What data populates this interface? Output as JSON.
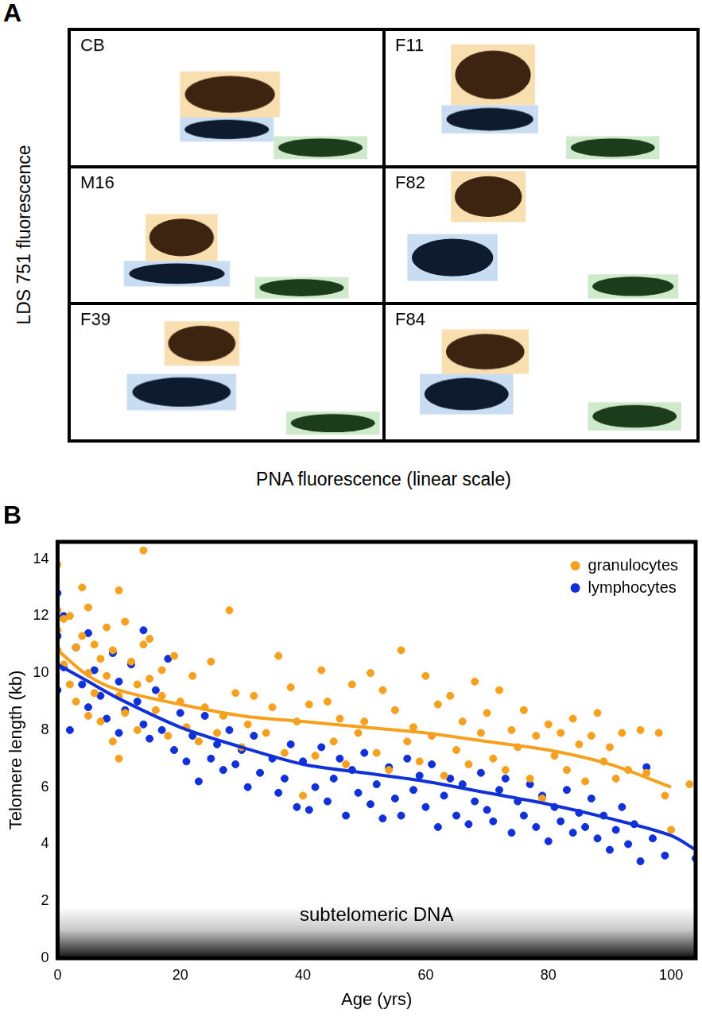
{
  "chart_data": [
    {
      "type": "scatter",
      "label": "A",
      "x_label": "PNA fluorescence (linear scale)",
      "y_label": "LDS 751 fluorescence",
      "tick_labels": false,
      "subplots": [
        {
          "title": "CB",
          "xlim": [
            0,
            100
          ],
          "ylim": [
            0,
            100
          ],
          "gates": [
            {
              "x": [
                35,
                65
              ],
              "y": [
                18,
                36
              ],
              "gate_color": "#c8dcf2",
              "color": "#0e1a2e"
            },
            {
              "x": [
                35,
                67
              ],
              "y": [
                36,
                70
              ],
              "gate_color": "#f9deb0",
              "color": "#3d2410"
            },
            {
              "x": [
                65,
                95
              ],
              "y": [
                5,
                22
              ],
              "gate_color": "#cfeacb",
              "color": "#1b3d1b"
            }
          ]
        },
        {
          "title": "F11",
          "xlim": [
            0,
            100
          ],
          "ylim": [
            0,
            100
          ],
          "gates": [
            {
              "x": [
                18,
                49
              ],
              "y": [
                24,
                45
              ],
              "gate_color": "#c8dcf2",
              "color": "#0e1a2e"
            },
            {
              "x": [
                21,
                48
              ],
              "y": [
                45,
                90
              ],
              "gate_color": "#f9deb0",
              "color": "#3d2410"
            },
            {
              "x": [
                58,
                88
              ],
              "y": [
                5,
                22
              ],
              "gate_color": "#cfeacb",
              "color": "#1b3d1b"
            }
          ]
        },
        {
          "title": "M16",
          "xlim": [
            0,
            100
          ],
          "ylim": [
            0,
            100
          ],
          "gates": [
            {
              "x": [
                17,
                51
              ],
              "y": [
                12,
                31
              ],
              "gate_color": "#c8dcf2",
              "color": "#0e1a2e"
            },
            {
              "x": [
                24,
                47
              ],
              "y": [
                31,
                66
              ],
              "gate_color": "#f9deb0",
              "color": "#3d2410"
            },
            {
              "x": [
                59,
                89
              ],
              "y": [
                3,
                19
              ],
              "gate_color": "#cfeacb",
              "color": "#1b3d1b"
            }
          ]
        },
        {
          "title": "F82",
          "xlim": [
            0,
            100
          ],
          "ylim": [
            0,
            100
          ],
          "gates": [
            {
              "x": [
                7,
                36
              ],
              "y": [
                16,
                51
              ],
              "gate_color": "#c8dcf2",
              "color": "#0e1a2e"
            },
            {
              "x": [
                21,
                45
              ],
              "y": [
                60,
                98
              ],
              "gate_color": "#f9deb0",
              "color": "#3d2410"
            },
            {
              "x": [
                65,
                94
              ],
              "y": [
                3,
                21
              ],
              "gate_color": "#cfeacb",
              "color": "#1b3d1b"
            }
          ]
        },
        {
          "title": "F39",
          "xlim": [
            0,
            100
          ],
          "ylim": [
            0,
            100
          ],
          "gates": [
            {
              "x": [
                18,
                53
              ],
              "y": [
                22,
                49
              ],
              "gate_color": "#c8dcf2",
              "color": "#0e1a2e"
            },
            {
              "x": [
                30,
                54
              ],
              "y": [
                55,
                88
              ],
              "gate_color": "#f9deb0",
              "color": "#3d2410"
            },
            {
              "x": [
                69,
                99
              ],
              "y": [
                4,
                21
              ],
              "gate_color": "#cfeacb",
              "color": "#1b3d1b"
            }
          ]
        },
        {
          "title": "F84",
          "xlim": [
            0,
            100
          ],
          "ylim": [
            0,
            100
          ],
          "gates": [
            {
              "x": [
                11,
                41
              ],
              "y": [
                19,
                49
              ],
              "gate_color": "#c8dcf2",
              "color": "#0e1a2e"
            },
            {
              "x": [
                18,
                46
              ],
              "y": [
                49,
                82
              ],
              "gate_color": "#f9deb0",
              "color": "#3d2410"
            },
            {
              "x": [
                65,
                95
              ],
              "y": [
                7,
                28
              ],
              "gate_color": "#cfeacb",
              "color": "#1b3d1b"
            }
          ]
        }
      ]
    },
    {
      "type": "scatter",
      "label": "B",
      "x_label": "Age (yrs)",
      "y_label": "Telomere length (kb)",
      "xlim": [
        0,
        104
      ],
      "ylim": [
        0,
        14.6
      ],
      "xticks": [
        0,
        20,
        40,
        60,
        80,
        100
      ],
      "yticks": [
        0,
        2,
        4,
        6,
        8,
        10,
        12,
        14
      ],
      "grid": false,
      "legend": "upper right",
      "series": [
        {
          "name": "granulocytes",
          "color": "#f5a01e",
          "marker": "circle",
          "x": [
            0,
            0,
            0,
            0,
            1,
            1,
            2,
            2,
            3,
            3,
            4,
            4,
            5,
            5,
            5,
            6,
            6,
            7,
            7,
            8,
            8,
            9,
            9,
            10,
            10,
            10,
            11,
            11,
            12,
            13,
            13,
            14,
            14,
            15,
            15,
            16,
            17,
            17,
            18,
            19,
            20,
            21,
            22,
            23,
            24,
            25,
            26,
            27,
            28,
            29,
            30,
            31,
            32,
            34,
            35,
            36,
            37,
            38,
            39,
            40,
            41,
            42,
            43,
            44,
            45,
            46,
            47,
            48,
            49,
            50,
            51,
            52,
            53,
            54,
            55,
            56,
            57,
            58,
            59,
            60,
            61,
            62,
            63,
            64,
            65,
            66,
            67,
            68,
            69,
            70,
            71,
            72,
            73,
            74,
            75,
            76,
            77,
            78,
            79,
            80,
            81,
            82,
            83,
            84,
            85,
            86,
            87,
            88,
            89,
            90,
            91,
            92,
            93,
            95,
            96,
            98,
            99,
            100,
            103
          ],
          "values": [
            13.8,
            12.2,
            11.5,
            10.8,
            11.9,
            10.3,
            12.0,
            9.6,
            10.9,
            9.0,
            13.0,
            11.3,
            12.3,
            10.0,
            8.5,
            11.0,
            9.3,
            10.5,
            8.3,
            9.9,
            11.6,
            10.8,
            7.6,
            12.9,
            9.2,
            7.0,
            11.8,
            8.6,
            10.4,
            9.6,
            8.0,
            14.3,
            11.0,
            9.8,
            11.2,
            8.7,
            10.1,
            9.2,
            7.8,
            10.6,
            9.0,
            8.1,
            9.9,
            7.6,
            8.8,
            10.4,
            7.9,
            8.5,
            12.2,
            9.3,
            7.4,
            8.2,
            9.2,
            7.9,
            8.8,
            10.6,
            7.2,
            9.5,
            8.3,
            5.7,
            8.9,
            7.1,
            10.1,
            9.0,
            7.6,
            8.4,
            6.8,
            9.6,
            7.9,
            8.3,
            10.0,
            7.2,
            9.4,
            6.6,
            8.7,
            10.8,
            7.6,
            8.1,
            6.9,
            9.9,
            7.8,
            8.9,
            6.4,
            9.2,
            7.3,
            8.3,
            6.8,
            9.7,
            7.9,
            8.6,
            7.0,
            9.4,
            6.6,
            8.0,
            7.4,
            8.7,
            6.3,
            7.8,
            5.6,
            8.2,
            7.1,
            7.9,
            6.6,
            8.4,
            7.5,
            6.2,
            7.8,
            8.6,
            6.9,
            7.4,
            6.3,
            7.9,
            6.6,
            8.0,
            6.5,
            7.9,
            5.7,
            4.5,
            6.1
          ],
          "trend": {
            "x": [
              0,
              5,
              10,
              20,
              30,
              40,
              50,
              60,
              70,
              80,
              90,
              100
            ],
            "values": [
              10.8,
              9.9,
              9.4,
              8.9,
              8.5,
              8.3,
              8.1,
              7.9,
              7.6,
              7.3,
              6.8,
              6.0
            ]
          }
        },
        {
          "name": "lymphocytes",
          "color": "#1030d8",
          "marker": "circle",
          "x": [
            0,
            0,
            0,
            1,
            1,
            2,
            3,
            4,
            5,
            5,
            6,
            7,
            8,
            9,
            10,
            10,
            11,
            12,
            13,
            14,
            14,
            15,
            16,
            17,
            18,
            19,
            20,
            21,
            22,
            23,
            24,
            25,
            26,
            27,
            28,
            29,
            30,
            31,
            32,
            33,
            35,
            36,
            37,
            38,
            39,
            40,
            41,
            42,
            43,
            44,
            45,
            46,
            47,
            48,
            49,
            50,
            51,
            52,
            53,
            54,
            55,
            56,
            57,
            58,
            59,
            60,
            61,
            62,
            63,
            64,
            65,
            66,
            67,
            68,
            69,
            70,
            71,
            72,
            73,
            74,
            75,
            76,
            77,
            78,
            79,
            80,
            81,
            82,
            83,
            84,
            85,
            86,
            87,
            88,
            89,
            90,
            91,
            92,
            93,
            94,
            95,
            96,
            97,
            99,
            104
          ],
          "values": [
            12.8,
            11.3,
            9.4,
            12.0,
            10.2,
            8.0,
            10.9,
            9.6,
            11.4,
            8.8,
            10.1,
            9.2,
            8.4,
            10.7,
            9.7,
            7.9,
            8.7,
            10.3,
            9.0,
            11.5,
            8.2,
            7.7,
            9.4,
            8.0,
            10.5,
            7.3,
            8.6,
            6.9,
            7.8,
            6.2,
            8.5,
            7.0,
            7.5,
            6.6,
            8.0,
            6.8,
            7.3,
            6.0,
            7.8,
            6.5,
            7.0,
            5.8,
            6.3,
            7.5,
            5.3,
            6.9,
            5.2,
            6.0,
            7.4,
            5.5,
            6.3,
            7.0,
            5.0,
            6.6,
            5.8,
            7.2,
            5.4,
            6.1,
            4.9,
            6.7,
            5.6,
            5.0,
            7.0,
            5.9,
            6.4,
            5.3,
            6.8,
            4.6,
            5.7,
            6.3,
            5.0,
            6.1,
            4.7,
            5.5,
            6.5,
            5.2,
            4.8,
            5.9,
            6.3,
            4.4,
            5.5,
            5.0,
            6.1,
            4.6,
            5.7,
            4.1,
            5.3,
            4.8,
            5.9,
            4.4,
            5.1,
            4.6,
            5.6,
            4.2,
            5.0,
            3.8,
            4.5,
            5.3,
            4.0,
            4.7,
            3.4,
            6.7,
            4.2,
            3.6,
            3.5
          ],
          "trend": {
            "x": [
              0,
              5,
              10,
              20,
              30,
              40,
              50,
              60,
              70,
              80,
              90,
              100,
              104
            ],
            "values": [
              10.3,
              9.7,
              9.1,
              8.1,
              7.4,
              6.8,
              6.5,
              6.2,
              5.8,
              5.4,
              4.9,
              4.3,
              3.8
            ]
          }
        }
      ],
      "annotations": [
        {
          "text": "subtelomeric DNA",
          "x": 52,
          "y": 1.5,
          "y_range": [
            0,
            1.8
          ]
        }
      ]
    }
  ]
}
